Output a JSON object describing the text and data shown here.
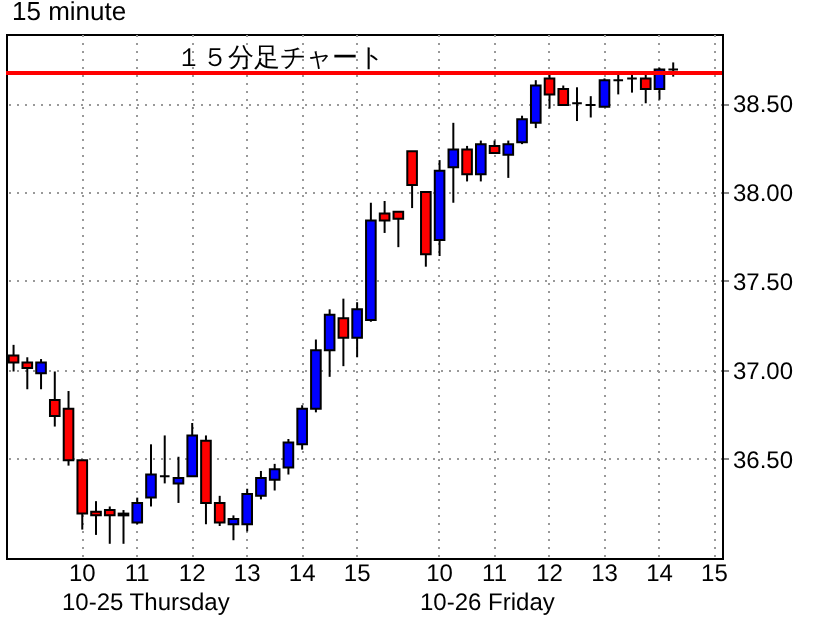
{
  "chart_data": {
    "type": "candlestick",
    "title": "15 minute",
    "annotations": [
      "１５分足チャート",
      "10-25 Thursday",
      "10-26 Friday"
    ],
    "categories": [
      null,
      null,
      null,
      null,
      null,
      "10",
      null,
      null,
      null,
      "11",
      null,
      null,
      null,
      "12",
      null,
      null,
      null,
      "13",
      null,
      null,
      null,
      "14",
      null,
      null,
      null,
      "15",
      null,
      null,
      null,
      null,
      null,
      "10",
      null,
      null,
      null,
      "11",
      null,
      null,
      null,
      "12",
      null,
      null,
      null,
      "13",
      null,
      null,
      null,
      "14",
      null,
      null,
      null,
      "15"
    ],
    "ohlc": [
      [
        37.08,
        37.14,
        36.99,
        37.04
      ],
      [
        37.04,
        37.07,
        36.89,
        37.01
      ],
      [
        36.98,
        37.06,
        36.89,
        37.04
      ],
      [
        36.83,
        36.99,
        36.68,
        36.74
      ],
      [
        36.78,
        36.88,
        36.46,
        36.49
      ],
      [
        36.49,
        36.49,
        36.1,
        36.19
      ],
      [
        36.2,
        36.26,
        36.07,
        36.18
      ],
      [
        36.21,
        36.23,
        36.02,
        36.18
      ],
      [
        36.19,
        36.21,
        36.02,
        36.18
      ],
      [
        36.14,
        36.28,
        36.13,
        36.25
      ],
      [
        36.28,
        36.58,
        36.23,
        36.41
      ],
      [
        36.4,
        36.63,
        36.36,
        36.4
      ],
      [
        36.36,
        36.51,
        36.25,
        36.39
      ],
      [
        36.4,
        36.7,
        36.4,
        36.63
      ],
      [
        36.6,
        36.63,
        36.13,
        36.25
      ],
      [
        36.25,
        36.29,
        36.12,
        36.14
      ],
      [
        36.13,
        36.18,
        36.04,
        36.16
      ],
      [
        36.13,
        36.33,
        36.09,
        36.3
      ],
      [
        36.29,
        36.43,
        36.27,
        36.39
      ],
      [
        36.38,
        36.47,
        36.32,
        36.44
      ],
      [
        36.45,
        36.61,
        36.41,
        36.59
      ],
      [
        36.58,
        36.8,
        36.55,
        36.78
      ],
      [
        36.78,
        37.17,
        36.76,
        37.11
      ],
      [
        37.11,
        37.34,
        36.96,
        37.31
      ],
      [
        37.29,
        37.4,
        37.02,
        37.18
      ],
      [
        37.18,
        37.38,
        37.07,
        37.34
      ],
      [
        37.28,
        37.94,
        37.27,
        37.84
      ],
      [
        37.88,
        37.95,
        37.77,
        37.84
      ],
      [
        37.89,
        37.89,
        37.69,
        37.85
      ],
      [
        38.23,
        38.23,
        37.91,
        38.04
      ],
      [
        38.0,
        38.0,
        37.58,
        37.65
      ],
      [
        37.73,
        38.18,
        37.64,
        38.12
      ],
      [
        38.14,
        38.39,
        37.94,
        38.24
      ],
      [
        38.24,
        38.26,
        38.06,
        38.1
      ],
      [
        38.1,
        38.29,
        38.06,
        38.27
      ],
      [
        38.26,
        38.29,
        38.22,
        38.22
      ],
      [
        38.21,
        38.29,
        38.08,
        38.27
      ],
      [
        38.28,
        38.43,
        38.27,
        38.41
      ],
      [
        38.39,
        38.63,
        38.36,
        38.6
      ],
      [
        38.64,
        38.67,
        38.47,
        38.55
      ],
      [
        38.58,
        38.6,
        38.49,
        38.49
      ],
      [
        38.5,
        38.59,
        38.4,
        38.5
      ],
      [
        38.49,
        38.54,
        38.42,
        38.49
      ],
      [
        38.48,
        38.64,
        38.48,
        38.63
      ],
      [
        38.63,
        38.68,
        38.55,
        38.63
      ],
      [
        38.64,
        38.67,
        38.56,
        38.64
      ],
      [
        38.64,
        38.67,
        38.5,
        38.58
      ],
      [
        38.58,
        38.7,
        38.52,
        38.69
      ],
      [
        38.69,
        38.73,
        38.65,
        38.69
      ],
      null,
      null,
      null
    ],
    "colors": [
      "#ff0000",
      "#ff0000",
      "#0000ff",
      "#ff0000",
      "#ff0000",
      "#ff0000",
      "#ff0000",
      "#ff0000",
      "#ff0000",
      "#0000ff",
      "#0000ff",
      "#000000",
      "#0000ff",
      "#0000ff",
      "#ff0000",
      "#ff0000",
      "#0000ff",
      "#0000ff",
      "#0000ff",
      "#0000ff",
      "#0000ff",
      "#0000ff",
      "#0000ff",
      "#0000ff",
      "#ff0000",
      "#0000ff",
      "#0000ff",
      "#ff0000",
      "#ff0000",
      "#ff0000",
      "#ff0000",
      "#0000ff",
      "#0000ff",
      "#ff0000",
      "#0000ff",
      "#ff0000",
      "#0000ff",
      "#0000ff",
      "#0000ff",
      "#ff0000",
      "#ff0000",
      "#000000",
      "#000000",
      "#0000ff",
      "#000000",
      "#000000",
      "#ff0000",
      "#0000ff",
      "#000000",
      null,
      null,
      null
    ],
    "ylim": [
      35.94,
      38.89
    ],
    "yticks": [
      {
        "value": 36.5,
        "label": "36.50"
      },
      {
        "value": 37,
        "label": "37.00"
      },
      {
        "value": 37.5,
        "label": "37.50"
      },
      {
        "value": 38,
        "label": "38.00"
      },
      {
        "value": 38.5,
        "label": "38.50"
      }
    ],
    "grid": true,
    "ref_lines": [
      {
        "axis": "y",
        "value": 38.67,
        "color": "#ff0000"
      }
    ]
  }
}
